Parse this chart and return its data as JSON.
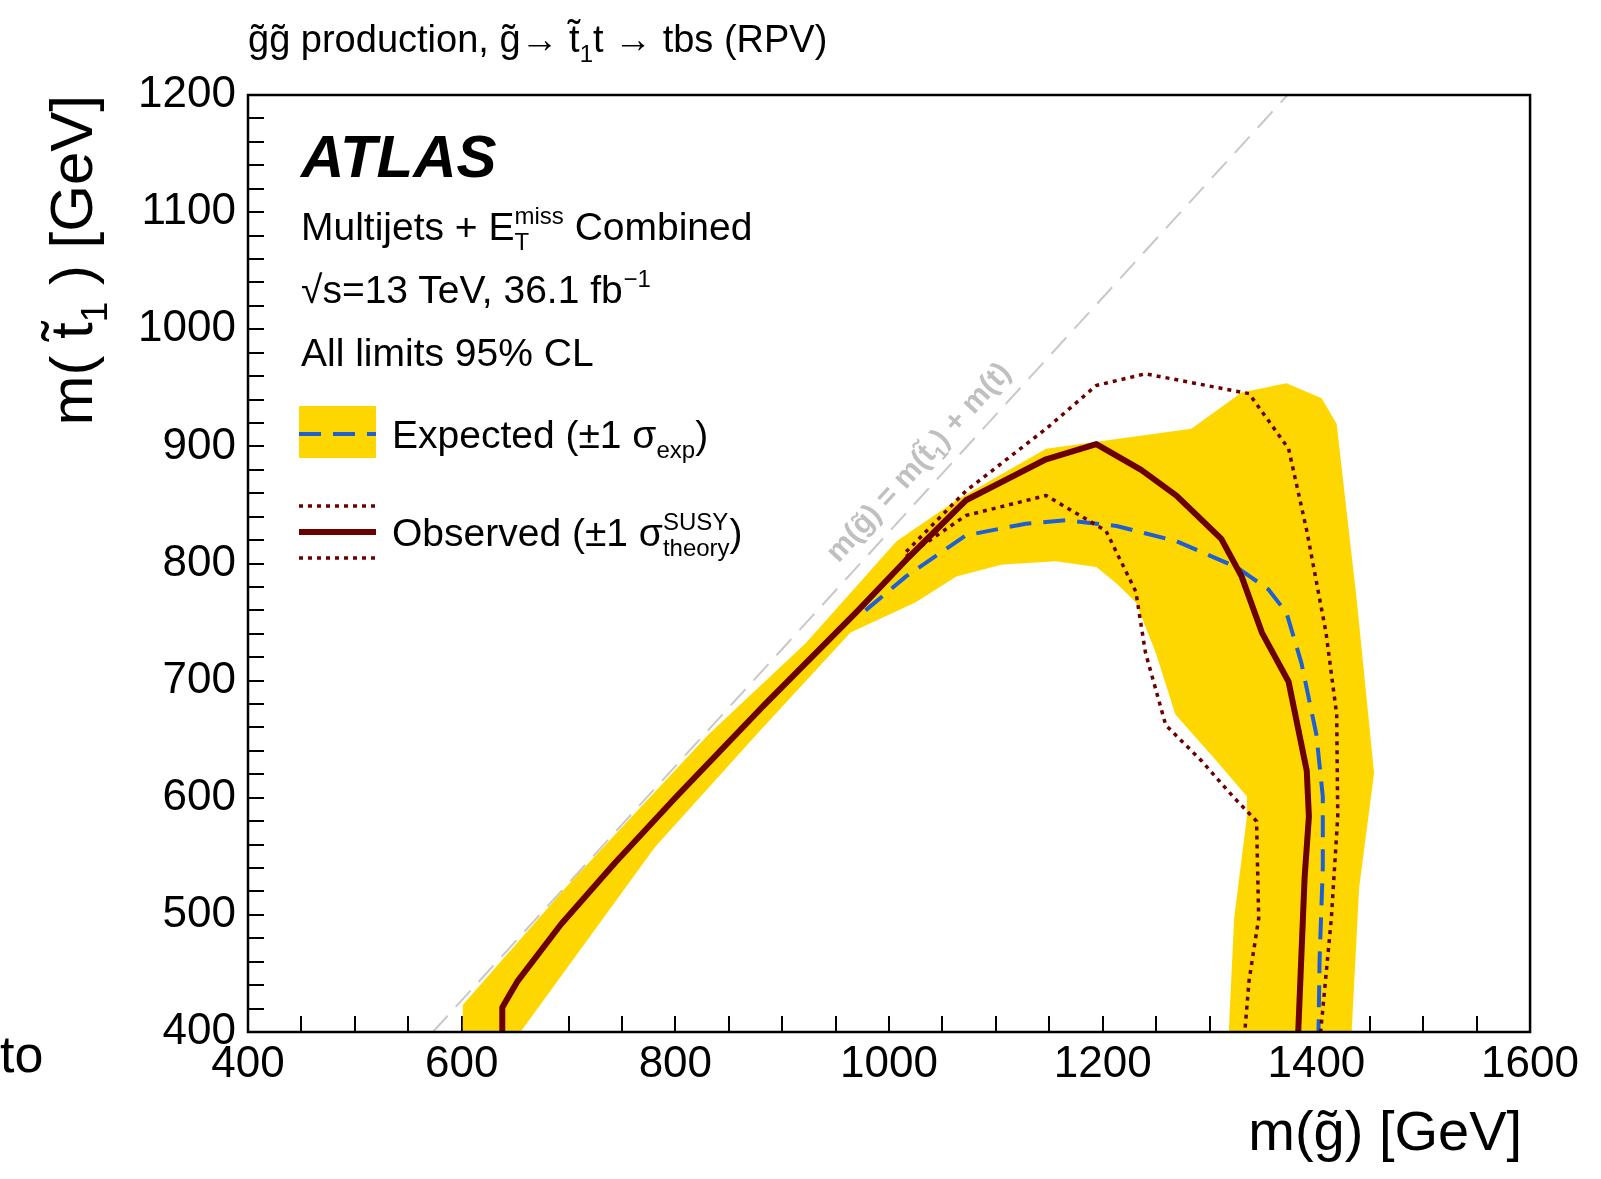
{
  "chart_data": {
    "type": "line",
    "title": "g̃g̃ production, g̃→ t̃$_{1}$t → tbs (RPV)",
    "xlabel": "m(g̃) [GeV]",
    "ylabel": "m( t̃$_{1}$ ) [GeV]",
    "xlim": [
      400,
      1600
    ],
    "ylim": [
      400,
      1200
    ],
    "xticks": [
      400,
      {
        "value": 450,
        "label": null
      },
      {
        "value": 500,
        "label": null
      },
      {
        "value": 550,
        "label": null
      },
      600,
      {
        "value": 650,
        "label": null
      },
      {
        "value": 700,
        "label": null
      },
      {
        "value": 750,
        "label": null
      },
      800,
      {
        "value": 850,
        "label": null
      },
      {
        "value": 900,
        "label": null
      },
      {
        "value": 950,
        "label": null
      },
      1000,
      {
        "value": 1050,
        "label": null
      },
      {
        "value": 1100,
        "label": null
      },
      {
        "value": 1150,
        "label": null
      },
      1200,
      {
        "value": 1250,
        "label": null
      },
      {
        "value": 1300,
        "label": null
      },
      {
        "value": 1350,
        "label": null
      },
      1400,
      {
        "value": 1450,
        "label": null
      },
      {
        "value": 1500,
        "label": null
      },
      {
        "value": 1550,
        "label": null
      },
      1600
    ],
    "yticks": [
      400,
      {
        "value": 420,
        "label": null
      },
      {
        "value": 440,
        "label": null
      },
      {
        "value": 460,
        "label": null
      },
      {
        "value": 480,
        "label": null
      },
      500,
      {
        "value": 520,
        "label": null
      },
      {
        "value": 540,
        "label": null
      },
      {
        "value": 560,
        "label": null
      },
      {
        "value": 580,
        "label": null
      },
      600,
      {
        "value": 620,
        "label": null
      },
      {
        "value": 640,
        "label": null
      },
      {
        "value": 660,
        "label": null
      },
      {
        "value": 680,
        "label": null
      },
      700,
      {
        "value": 720,
        "label": null
      },
      {
        "value": 740,
        "label": null
      },
      {
        "value": 760,
        "label": null
      },
      {
        "value": 780,
        "label": null
      },
      800,
      {
        "value": 820,
        "label": null
      },
      {
        "value": 840,
        "label": null
      },
      {
        "value": 860,
        "label": null
      },
      {
        "value": 880,
        "label": null
      },
      900,
      {
        "value": 920,
        "label": null
      },
      {
        "value": 940,
        "label": null
      },
      {
        "value": 960,
        "label": null
      },
      {
        "value": 980,
        "label": null
      },
      1000,
      {
        "value": 1020,
        "label": null
      },
      {
        "value": 1040,
        "label": null
      },
      {
        "value": 1060,
        "label": null
      },
      {
        "value": 1080,
        "label": null
      },
      1100,
      {
        "value": 1120,
        "label": null
      },
      {
        "value": 1140,
        "label": null
      },
      {
        "value": 1160,
        "label": null
      },
      {
        "value": 1180,
        "label": null
      },
      1200
    ],
    "grid": false,
    "legend": "top left",
    "marker": "none",
    "series": [
      {
        "color": "#c8c8c8",
        "line_style": "dashed",
        "x": [
          573,
          1373
        ],
        "values": [
          400,
          1200
        ]
      },
      {
        "type": "area",
        "color": "#ffd700",
        "x": [
          601,
          601,
          697,
          831,
          922,
          1007,
          1063,
          1147,
          1283,
          1330,
          1372,
          1405,
          1419,
          1438,
          1454,
          1440,
          1433,
          1318,
          1323,
          1335,
          1335,
          1306,
          1268,
          1250,
          1231,
          1213,
          1194,
          1156,
          1105,
          1063,
          1025,
          964,
          884,
          781,
          655
        ],
        "values": [
          400,
          423,
          523,
          654,
          732,
          819,
          854,
          898,
          915,
          946,
          954,
          941,
          919,
          767,
          621,
          523,
          400,
          400,
          497,
          584,
          601,
          632,
          671,
          723,
          767,
          783,
          797,
          802,
          799,
          789,
          767,
          741,
          662,
          558,
          400
        ]
      },
      {
        "name": "Expected (±1 σ$_{exp}$)",
        "color": "#1f5fd6",
        "line_style": "dashed",
        "x": [
          978,
          1016,
          1072,
          1128,
          1166,
          1213,
          1269,
          1325,
          1355,
          1372,
          1386,
          1400,
          1406,
          1406,
          1403,
          1402
        ],
        "values": [
          760,
          789,
          824,
          834,
          837,
          832,
          819,
          797,
          778,
          758,
          715,
          654,
          601,
          540,
          462,
          400
        ]
      },
      {
        "name": "Observed (±1 σ$^{SUSY}$$_{theory}$)",
        "color": "#6b0000",
        "line_style": "solid",
        "x": [
          638,
          638,
          652,
          693,
          744,
          800,
          884,
          969,
          1016,
          1072,
          1147,
          1194,
          1236,
          1269,
          1311,
          1330,
          1349,
          1374,
          1391,
          1393,
          1389,
          1385,
          1383
        ],
        "values": [
          400,
          421,
          443,
          492,
          545,
          600,
          680,
          758,
          803,
          854,
          889,
          902,
          880,
          858,
          821,
          789,
          741,
          699,
          623,
          584,
          532,
          444,
          400
        ]
      },
      {
        "color": "#6b0000",
        "line_style": "dotted",
        "x": [
          1016,
          1072,
          1147,
          1194,
          1240,
          1337,
          1374,
          1391,
          1409,
          1419,
          1420,
          1414,
          1404
        ],
        "values": [
          810,
          862,
          915,
          952,
          962,
          945,
          898,
          828,
          741,
          671,
          584,
          497,
          400
        ]
      },
      {
        "color": "#6b0000",
        "line_style": "dotted",
        "x": [
          1016,
          1072,
          1147,
          1203,
          1231,
          1240,
          1259,
          1292,
          1322,
          1344,
          1346,
          1337,
          1333
        ],
        "values": [
          806,
          841,
          858,
          828,
          776,
          724,
          662,
          632,
          601,
          580,
          497,
          444,
          400
        ]
      }
    ],
    "annotations": [
      "ATLAS",
      "Multijets + E$_{T}$$^{miss}$ Combined",
      "√s=13 TeV, 36.1 fb$^{−1}$",
      "All limits 95% CL",
      "m(g̃) = m(t̃$_{1}$) + m(t)",
      "to"
    ]
  }
}
